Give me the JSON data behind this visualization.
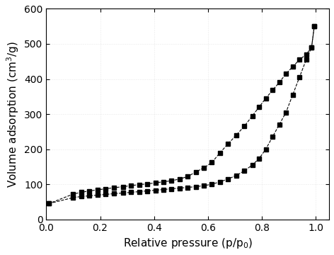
{
  "adsorption_x": [
    0.01,
    0.1,
    0.13,
    0.16,
    0.19,
    0.22,
    0.25,
    0.285,
    0.315,
    0.345,
    0.375,
    0.405,
    0.435,
    0.465,
    0.495,
    0.525,
    0.555,
    0.585,
    0.615,
    0.645,
    0.675,
    0.705,
    0.735,
    0.765,
    0.79,
    0.815,
    0.84,
    0.865,
    0.89,
    0.915,
    0.94,
    0.965,
    0.985,
    0.995
  ],
  "adsorption_y": [
    45,
    62,
    65,
    67,
    69,
    71,
    73,
    75,
    77,
    79,
    81,
    83,
    85,
    87,
    89,
    91,
    93,
    96,
    100,
    107,
    115,
    125,
    138,
    155,
    173,
    200,
    235,
    270,
    305,
    355,
    405,
    455,
    490,
    550
  ],
  "desorption_x": [
    0.995,
    0.985,
    0.965,
    0.94,
    0.915,
    0.89,
    0.865,
    0.84,
    0.815,
    0.79,
    0.765,
    0.735,
    0.705,
    0.675,
    0.645,
    0.615,
    0.585,
    0.555,
    0.525,
    0.495,
    0.465,
    0.435,
    0.405,
    0.375,
    0.345,
    0.315,
    0.285,
    0.25,
    0.22,
    0.19,
    0.16,
    0.13,
    0.1,
    0.01
  ],
  "desorption_y": [
    550,
    490,
    470,
    455,
    435,
    415,
    390,
    368,
    345,
    320,
    295,
    265,
    240,
    215,
    190,
    162,
    147,
    135,
    122,
    115,
    110,
    107,
    104,
    101,
    99,
    96,
    93,
    90,
    87,
    84,
    81,
    77,
    72,
    45
  ],
  "xlabel": "Relative pressure (p/p$_0$)",
  "ylabel": "Volume adsorption (cm$^3$/g)",
  "xlim": [
    0.0,
    1.05
  ],
  "ylim": [
    0,
    600
  ],
  "xticks": [
    0.0,
    0.2,
    0.4,
    0.6,
    0.8,
    1.0
  ],
  "yticks": [
    0,
    100,
    200,
    300,
    400,
    500,
    600
  ],
  "line_color": "#000000",
  "marker": "s",
  "markersize": 5,
  "linewidth": 0.8
}
